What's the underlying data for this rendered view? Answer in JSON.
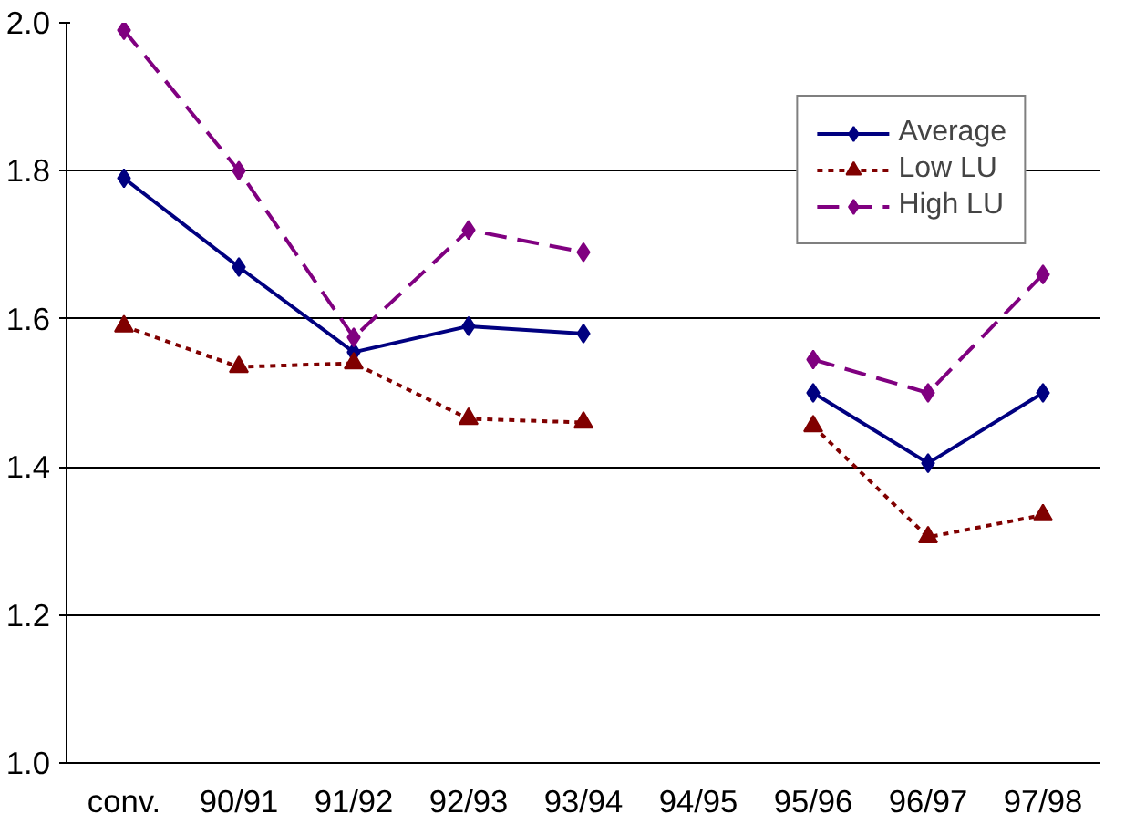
{
  "chart_data": {
    "type": "line",
    "categories": [
      "conv.",
      "90/91",
      "91/92",
      "92/93",
      "93/94",
      "94/95",
      "95/96",
      "96/97",
      "97/98"
    ],
    "series": [
      {
        "name": "Average",
        "color": "#000080",
        "marker": "diamond",
        "line_style": "solid",
        "values": [
          1.79,
          1.67,
          1.555,
          1.59,
          1.58,
          null,
          1.5,
          1.405,
          1.5
        ]
      },
      {
        "name": "Low LU",
        "color": "#800000",
        "marker": "triangle",
        "line_style": "dotted",
        "values": [
          1.59,
          1.535,
          1.54,
          1.465,
          1.46,
          null,
          1.455,
          1.305,
          1.335
        ]
      },
      {
        "name": "High LU",
        "color": "#800080",
        "marker": "diamond",
        "line_style": "dashed",
        "values": [
          1.99,
          1.8,
          1.575,
          1.72,
          1.69,
          null,
          1.545,
          1.5,
          1.66
        ]
      }
    ],
    "ylim": [
      1.0,
      2.0
    ],
    "yticks": [
      {
        "value": 1.0,
        "label": "1.0"
      },
      {
        "value": 1.2,
        "label": "1.2"
      },
      {
        "value": 1.4,
        "label": "1.4"
      },
      {
        "value": 1.6,
        "label": "1.6"
      },
      {
        "value": 1.8,
        "label": "1.8"
      },
      {
        "value": 2.0,
        "label": "2.0"
      }
    ],
    "grid": "y",
    "legend": "top right"
  }
}
